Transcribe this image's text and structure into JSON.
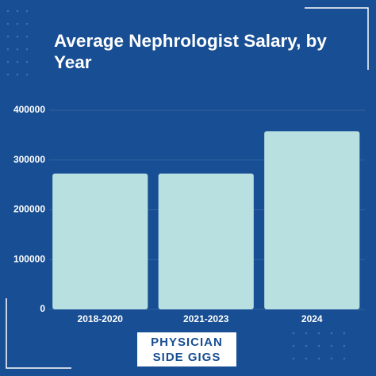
{
  "chart_data": {
    "type": "bar",
    "title": "Average Nephrologist Salary, by Year",
    "categories": [
      "2018-2020",
      "2021-2023",
      "2024"
    ],
    "values": [
      273000,
      273000,
      358000
    ],
    "color": "#b9e0e0",
    "ylim": [
      0,
      400000
    ],
    "yticks": [
      0,
      100000,
      200000,
      300000,
      400000
    ],
    "grid": true
  },
  "brand": "PHYSICIAN SIDE GIGS"
}
